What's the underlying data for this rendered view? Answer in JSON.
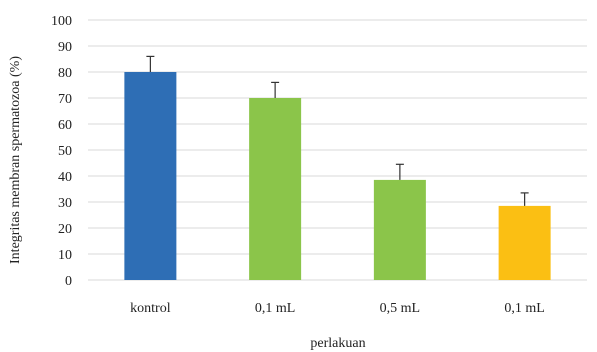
{
  "chart_data": {
    "type": "bar",
    "title": "",
    "xlabel": "perlakuan",
    "ylabel": "Integritas membran spermatozoa (%)",
    "ylim": [
      0,
      100
    ],
    "ytick_step": 10,
    "categories": [
      "kontrol",
      "0,1 mL",
      "0,5 mL",
      "0,1 mL"
    ],
    "values": [
      80,
      70,
      38.5,
      28.5
    ],
    "errors": [
      6,
      6,
      6,
      5
    ],
    "bar_colors": [
      "#2e6eb5",
      "#8bc54a",
      "#8bc54a",
      "#fbbf13"
    ],
    "grid": true,
    "legend": "none"
  }
}
